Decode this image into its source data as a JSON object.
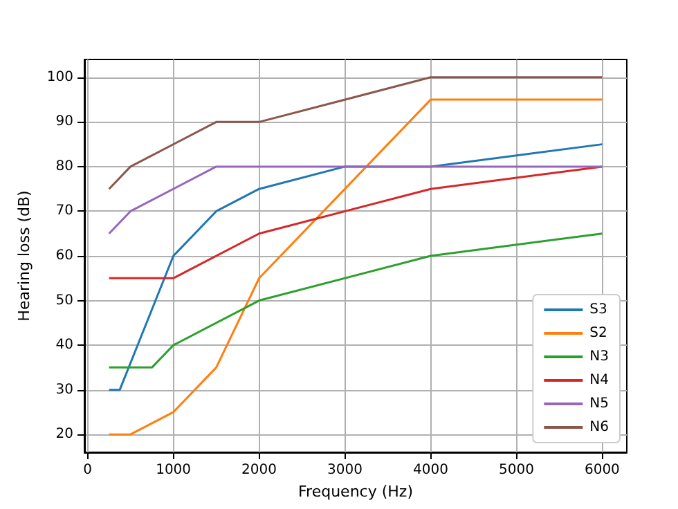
{
  "chart_data": {
    "type": "line",
    "xlabel": "Frequency (Hz)",
    "ylabel": "Hearing loss (dB)",
    "xlim": [
      -37.5,
      6287.5
    ],
    "xticks": [
      0,
      1000,
      2000,
      3000,
      4000,
      5000,
      6000
    ],
    "ylim": [
      16,
      104
    ],
    "yticks": [
      20,
      30,
      40,
      50,
      60,
      70,
      80,
      90,
      100
    ],
    "grid": true,
    "legend": "bottom right",
    "marker": "none",
    "line_style": "solid",
    "series": [
      {
        "name": "S3",
        "color": "#1f77b4",
        "x": [
          250,
          375,
          1000,
          1500,
          2000,
          3000,
          4000,
          6000
        ],
        "values": [
          30,
          30,
          60,
          70,
          75,
          80,
          80,
          85
        ]
      },
      {
        "name": "S2",
        "color": "#ff7f0e",
        "x": [
          250,
          500,
          1000,
          1500,
          2000,
          4000,
          6000
        ],
        "values": [
          20,
          20,
          25,
          35,
          55,
          95,
          95
        ]
      },
      {
        "name": "N3",
        "color": "#2ca02c",
        "x": [
          250,
          750,
          1000,
          2000,
          4000,
          6000
        ],
        "values": [
          35,
          35,
          40,
          50,
          60,
          65
        ]
      },
      {
        "name": "N4",
        "color": "#d62728",
        "x": [
          250,
          1000,
          2000,
          4000,
          6000
        ],
        "values": [
          55,
          55,
          65,
          75,
          80
        ]
      },
      {
        "name": "N5",
        "color": "#9467bd",
        "x": [
          250,
          500,
          1500,
          4000,
          6000
        ],
        "values": [
          65,
          70,
          80,
          80,
          80
        ]
      },
      {
        "name": "N6",
        "color": "#8c564b",
        "x": [
          250,
          500,
          1500,
          2000,
          4000,
          6000
        ],
        "values": [
          75,
          80,
          90,
          90,
          100,
          100
        ]
      }
    ]
  }
}
